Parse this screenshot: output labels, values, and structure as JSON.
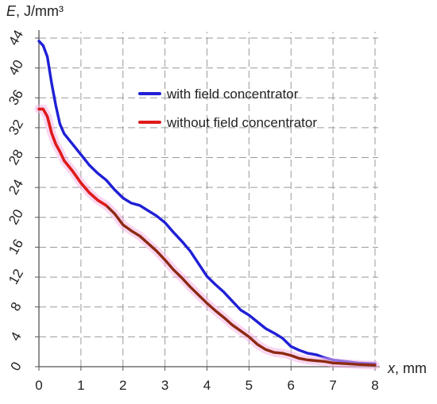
{
  "chart_data": {
    "type": "line",
    "y_title": {
      "var": "E",
      "unit": ", J/mm³"
    },
    "x_title": {
      "var": "x",
      "unit": ", mm"
    },
    "xlim": [
      0,
      8
    ],
    "ylim": [
      0,
      44
    ],
    "x_ticks": [
      0,
      1,
      2,
      3,
      4,
      5,
      6,
      7,
      8
    ],
    "y_ticks": [
      0,
      4,
      8,
      12,
      16,
      20,
      24,
      28,
      32,
      36,
      40,
      44
    ],
    "grid": true,
    "legend_position": "upper-right",
    "series": [
      {
        "name": "with field concentrator",
        "color": "#1f1fd6",
        "points": [
          [
            0.0,
            43.6
          ],
          [
            0.1,
            43.0
          ],
          [
            0.2,
            41.5
          ],
          [
            0.3,
            38.0
          ],
          [
            0.4,
            35.0
          ],
          [
            0.5,
            32.5
          ],
          [
            0.6,
            31.2
          ],
          [
            0.8,
            29.8
          ],
          [
            1.0,
            28.4
          ],
          [
            1.2,
            27.0
          ],
          [
            1.4,
            25.9
          ],
          [
            1.6,
            25.0
          ],
          [
            1.8,
            23.7
          ],
          [
            2.0,
            22.6
          ],
          [
            2.2,
            21.9
          ],
          [
            2.4,
            21.6
          ],
          [
            2.6,
            20.9
          ],
          [
            2.8,
            20.2
          ],
          [
            3.0,
            19.3
          ],
          [
            3.2,
            18.0
          ],
          [
            3.4,
            16.8
          ],
          [
            3.6,
            15.5
          ],
          [
            3.8,
            13.8
          ],
          [
            4.0,
            12.1
          ],
          [
            4.2,
            11.0
          ],
          [
            4.4,
            10.0
          ],
          [
            4.6,
            8.8
          ],
          [
            4.8,
            7.6
          ],
          [
            5.0,
            6.9
          ],
          [
            5.2,
            6.0
          ],
          [
            5.4,
            5.1
          ],
          [
            5.6,
            4.5
          ],
          [
            5.8,
            3.8
          ],
          [
            6.0,
            2.7
          ],
          [
            6.2,
            2.2
          ],
          [
            6.4,
            1.8
          ],
          [
            6.6,
            1.6
          ],
          [
            6.8,
            1.2
          ],
          [
            7.0,
            0.9
          ],
          [
            7.3,
            0.7
          ],
          [
            7.6,
            0.5
          ],
          [
            8.0,
            0.4
          ]
        ]
      },
      {
        "name": "without field concentrator",
        "color": "#e01a1a",
        "points": [
          [
            0.0,
            34.5
          ],
          [
            0.1,
            34.5
          ],
          [
            0.2,
            33.5
          ],
          [
            0.3,
            31.3
          ],
          [
            0.4,
            29.8
          ],
          [
            0.5,
            28.8
          ],
          [
            0.6,
            27.6
          ],
          [
            0.8,
            26.2
          ],
          [
            1.0,
            24.6
          ],
          [
            1.2,
            23.3
          ],
          [
            1.4,
            22.3
          ],
          [
            1.6,
            21.6
          ],
          [
            1.8,
            20.5
          ],
          [
            2.0,
            19.0
          ],
          [
            2.2,
            18.2
          ],
          [
            2.4,
            17.5
          ],
          [
            2.6,
            16.5
          ],
          [
            2.8,
            15.5
          ],
          [
            3.0,
            14.3
          ],
          [
            3.2,
            13.0
          ],
          [
            3.4,
            11.9
          ],
          [
            3.6,
            10.7
          ],
          [
            3.8,
            9.6
          ],
          [
            4.0,
            8.5
          ],
          [
            4.2,
            7.5
          ],
          [
            4.4,
            6.6
          ],
          [
            4.6,
            5.6
          ],
          [
            4.8,
            4.8
          ],
          [
            5.0,
            4.0
          ],
          [
            5.2,
            3.0
          ],
          [
            5.4,
            2.3
          ],
          [
            5.6,
            1.9
          ],
          [
            5.8,
            1.8
          ],
          [
            6.0,
            1.5
          ],
          [
            6.2,
            1.1
          ],
          [
            6.4,
            0.9
          ],
          [
            6.6,
            0.8
          ],
          [
            6.8,
            0.7
          ],
          [
            7.0,
            0.5
          ],
          [
            7.3,
            0.4
          ],
          [
            7.6,
            0.3
          ],
          [
            8.0,
            0.2
          ]
        ]
      }
    ]
  }
}
